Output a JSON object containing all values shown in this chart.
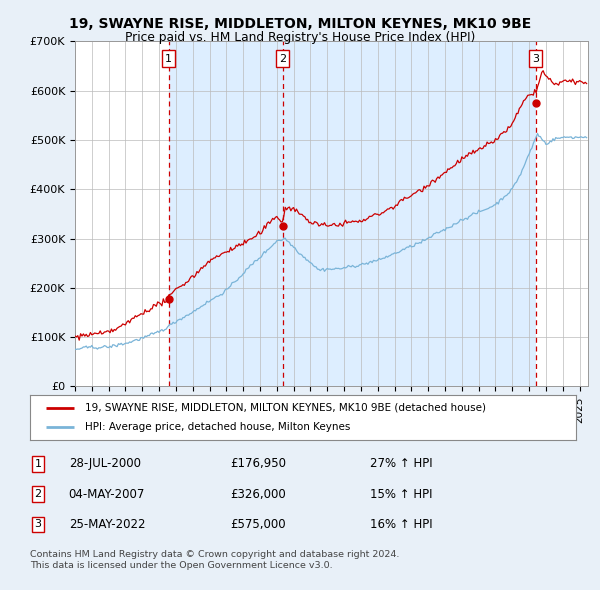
{
  "title1": "19, SWAYNE RISE, MIDDLETON, MILTON KEYNES, MK10 9BE",
  "title2": "Price paid vs. HM Land Registry's House Price Index (HPI)",
  "legend_line1": "19, SWAYNE RISE, MIDDLETON, MILTON KEYNES, MK10 9BE (detached house)",
  "legend_line2": "HPI: Average price, detached house, Milton Keynes",
  "footnote1": "Contains HM Land Registry data © Crown copyright and database right 2024.",
  "footnote2": "This data is licensed under the Open Government Licence v3.0.",
  "transactions": [
    {
      "num": 1,
      "date": "28-JUL-2000",
      "x": 2000.57,
      "price": 176950,
      "label": "27% ↑ HPI"
    },
    {
      "num": 2,
      "date": "04-MAY-2007",
      "x": 2007.34,
      "price": 326000,
      "label": "15% ↑ HPI"
    },
    {
      "num": 3,
      "date": "25-MAY-2022",
      "x": 2022.4,
      "price": 575000,
      "label": "16% ↑ HPI"
    }
  ],
  "hpi_color": "#7ab4d8",
  "price_color": "#cc0000",
  "vline_color": "#cc0000",
  "shade_color": "#ddeeff",
  "background_color": "#e8f0f8",
  "plot_bg": "#ffffff",
  "ylim": [
    0,
    700000
  ],
  "xlim_start": 1995.0,
  "xlim_end": 2025.5
}
